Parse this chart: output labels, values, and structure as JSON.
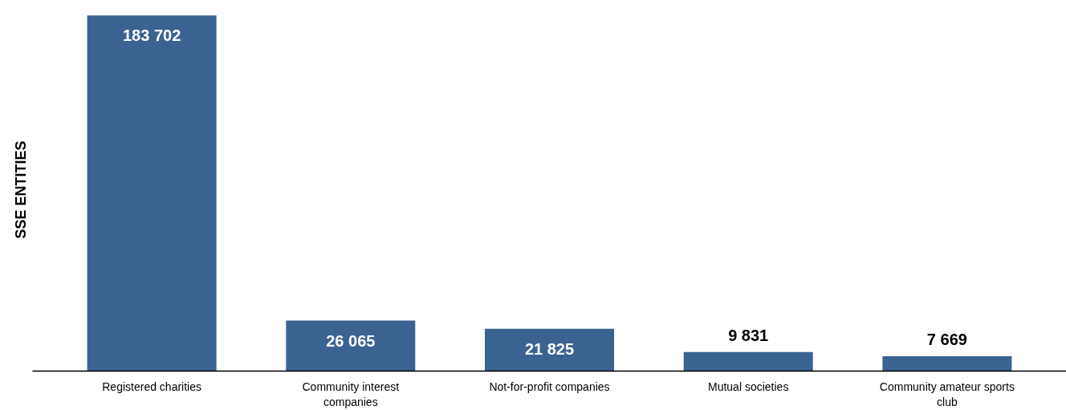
{
  "chart_data": {
    "type": "bar",
    "ylabel": "SSE ENTITIES",
    "categories": [
      "Registered charities",
      "Community interest companies",
      "Not-for-profit companies",
      "Mutual societies",
      "Community amateur sports club"
    ],
    "values": [
      183702,
      26065,
      21825,
      9831,
      7669
    ],
    "value_labels": [
      "183 702",
      "26 065",
      "21 825",
      "9 831",
      "7 669"
    ],
    "color": "#3b6391",
    "tick_labels": "x"
  }
}
